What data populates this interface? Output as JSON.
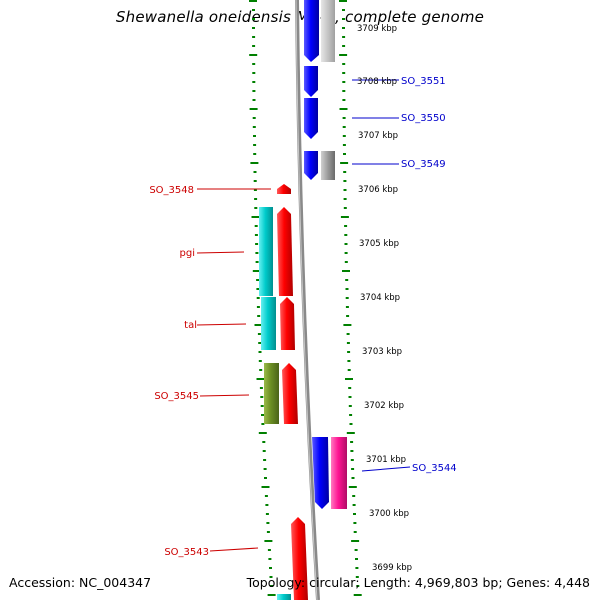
{
  "title": "Shewanella oneidensis MR-1, complete genome",
  "footer": {
    "accession": "Accession: NC_004347",
    "topology": "Topology: circular; Length: 4,969,803 bp; Genes: 4,448"
  },
  "kbp_labels": [
    "3709 kbp",
    "3708 kbp",
    "3707 kbp",
    "3706 kbp",
    "3705 kbp",
    "3704 kbp",
    "3703 kbp",
    "3702 kbp",
    "3701 kbp",
    "3700 kbp",
    "3699 kbp"
  ],
  "gene_labels_left": [
    "SO_3548",
    "pgi",
    "tal",
    "SO_3545",
    "SO_3543"
  ],
  "gene_labels_right": [
    "SO_3551",
    "SO_3550",
    "SO_3549",
    "SO_3544"
  ],
  "colors": {
    "forward_gene": "#ff0000",
    "reverse_gene": "#0000ff",
    "cyan_feature": "#00cccc",
    "olive_feature": "#6b8e23",
    "magenta_feature": "#ff1493",
    "gray_feature": "#808080",
    "tick_green": "#008000",
    "backbone": "#8a8a8a"
  }
}
